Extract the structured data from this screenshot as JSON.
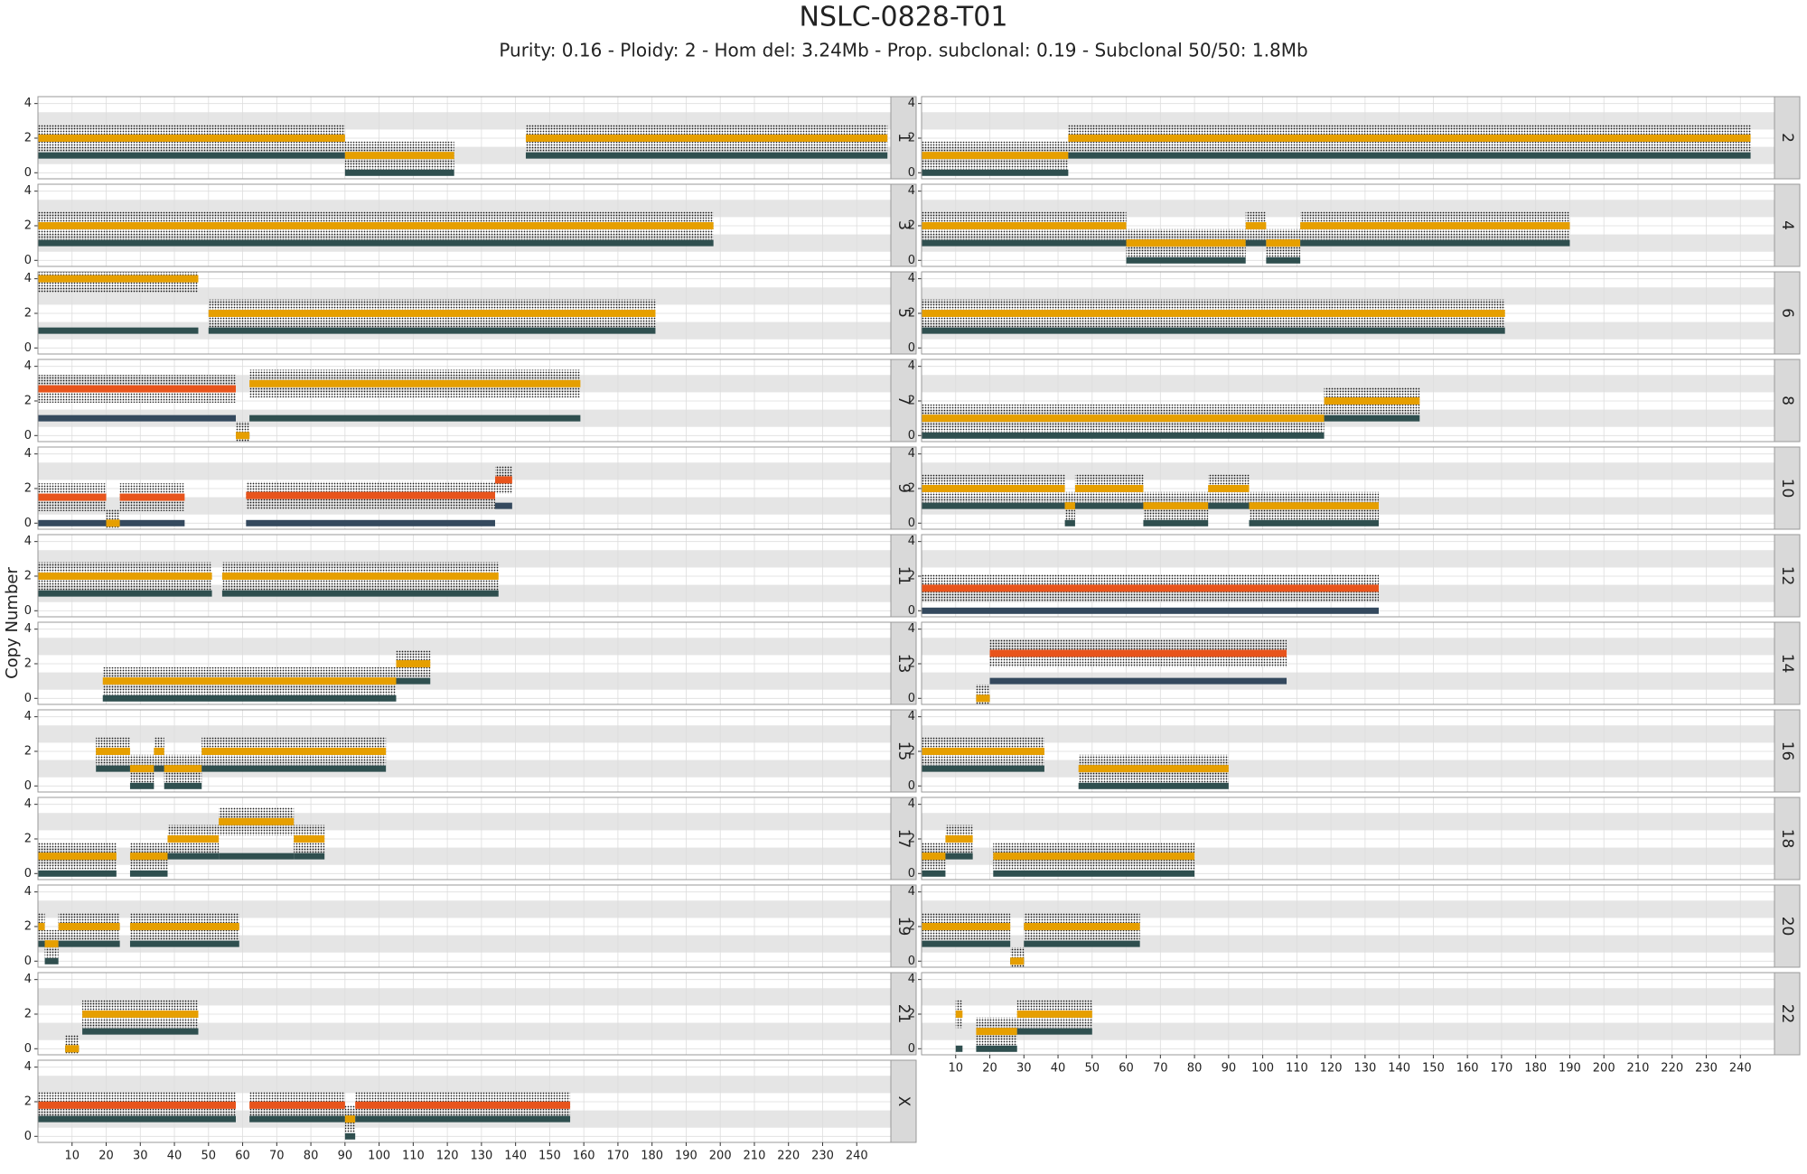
{
  "chart_data": {
    "type": "copy-number",
    "title": "NSLC-0828-T01",
    "subtitle": "Purity: 0.16 - Ploidy: 2 - Hom del: 3.24Mb - Prop. subclonal: 0.19 - Subclonal 50/50: 1.8Mb",
    "ylabel": "Copy Number",
    "xlim": [
      0,
      250
    ],
    "xticks": [
      10,
      20,
      30,
      40,
      50,
      60,
      70,
      80,
      90,
      100,
      110,
      120,
      130,
      140,
      150,
      160,
      170,
      180,
      190,
      200,
      210,
      220,
      230,
      240
    ],
    "ylim": [
      -0.35,
      4.4
    ],
    "yticks": [
      0,
      2,
      4
    ],
    "bands": [
      [
        0.5,
        1.5
      ],
      [
        2.5,
        3.5
      ]
    ],
    "panels": [
      {
        "name": "1",
        "segments": [
          {
            "start": 0,
            "end": 90,
            "total": 2,
            "minor": 1,
            "color": "#E69F00",
            "minor_color": "#2F4F4F"
          },
          {
            "start": 90,
            "end": 122,
            "total": 1,
            "minor": 0,
            "color": "#E69F00",
            "minor_color": "#2F4F4F"
          },
          {
            "start": 143,
            "end": 249,
            "total": 2,
            "minor": 1,
            "color": "#E69F00",
            "minor_color": "#2F4F4F"
          }
        ]
      },
      {
        "name": "2",
        "segments": [
          {
            "start": 0,
            "end": 43,
            "total": 1,
            "minor": 0,
            "color": "#E69F00",
            "minor_color": "#2F4F4F"
          },
          {
            "start": 43,
            "end": 243,
            "total": 2,
            "minor": 1,
            "color": "#E69F00",
            "minor_color": "#2F4F4F"
          }
        ]
      },
      {
        "name": "3",
        "segments": [
          {
            "start": 0,
            "end": 198,
            "total": 2,
            "minor": 1,
            "color": "#E69F00",
            "minor_color": "#2F4F4F"
          }
        ]
      },
      {
        "name": "4",
        "segments": [
          {
            "start": 0,
            "end": 60,
            "total": 2,
            "minor": 1,
            "color": "#E69F00",
            "minor_color": "#2F4F4F"
          },
          {
            "start": 60,
            "end": 95,
            "total": 1,
            "minor": 0,
            "color": "#E69F00",
            "minor_color": "#2F4F4F"
          },
          {
            "start": 95,
            "end": 101,
            "total": 2,
            "minor": 1,
            "color": "#E69F00",
            "minor_color": "#2F4F4F"
          },
          {
            "start": 101,
            "end": 111,
            "total": 1,
            "minor": 0,
            "color": "#E69F00",
            "minor_color": "#2F4F4F"
          },
          {
            "start": 111,
            "end": 190,
            "total": 2,
            "minor": 1,
            "color": "#E69F00",
            "minor_color": "#2F4F4F"
          }
        ]
      },
      {
        "name": "5",
        "segments": [
          {
            "start": 0,
            "end": 47,
            "total": 4,
            "minor": 1,
            "color": "#E69F00",
            "minor_color": "#2F4F4F"
          },
          {
            "start": 50,
            "end": 181,
            "total": 2,
            "minor": 1,
            "color": "#E69F00",
            "minor_color": "#2F4F4F"
          }
        ]
      },
      {
        "name": "6",
        "segments": [
          {
            "start": 0,
            "end": 171,
            "total": 2,
            "minor": 1,
            "color": "#E69F00",
            "minor_color": "#2F4F4F"
          }
        ]
      },
      {
        "name": "7",
        "segments": [
          {
            "start": 0,
            "end": 58,
            "total": 2.7,
            "minor": 1,
            "color": "#E8541C",
            "minor_color": "#34495E"
          },
          {
            "start": 58,
            "end": 62,
            "total": 0,
            "minor": 0,
            "color": "#E69F00",
            "minor_color": "#2F4F4F"
          },
          {
            "start": 62,
            "end": 159,
            "total": 3,
            "minor": 1,
            "color": "#E69F00",
            "minor_color": "#2F4F4F"
          }
        ]
      },
      {
        "name": "8",
        "segments": [
          {
            "start": 0,
            "end": 118,
            "total": 1,
            "minor": 0,
            "color": "#E69F00",
            "minor_color": "#2F4F4F"
          },
          {
            "start": 118,
            "end": 146,
            "total": 2,
            "minor": 1,
            "color": "#E69F00",
            "minor_color": "#2F4F4F"
          }
        ]
      },
      {
        "name": "9",
        "segments": [
          {
            "start": 0,
            "end": 20,
            "total": 1.5,
            "minor": 0,
            "color": "#E8541C",
            "minor_color": "#34495E"
          },
          {
            "start": 20,
            "end": 24,
            "total": 0,
            "minor": 0,
            "color": "#E69F00",
            "minor_color": "#2F4F4F"
          },
          {
            "start": 24,
            "end": 43,
            "total": 1.5,
            "minor": 0,
            "color": "#E8541C",
            "minor_color": "#34495E"
          },
          {
            "start": 61,
            "end": 134,
            "total": 1.6,
            "minor": 0,
            "color": "#E8541C",
            "minor_color": "#34495E"
          },
          {
            "start": 134,
            "end": 139,
            "total": 2.5,
            "minor": 1,
            "color": "#E8541C",
            "minor_color": "#34495E"
          }
        ]
      },
      {
        "name": "10",
        "segments": [
          {
            "start": 0,
            "end": 42,
            "total": 2,
            "minor": 1,
            "color": "#E69F00",
            "minor_color": "#2F4F4F"
          },
          {
            "start": 42,
            "end": 45,
            "total": 1,
            "minor": 0,
            "color": "#E69F00",
            "minor_color": "#2F4F4F"
          },
          {
            "start": 45,
            "end": 65,
            "total": 2,
            "minor": 1,
            "color": "#E69F00",
            "minor_color": "#2F4F4F"
          },
          {
            "start": 65,
            "end": 84,
            "total": 1,
            "minor": 0,
            "color": "#E69F00",
            "minor_color": "#2F4F4F"
          },
          {
            "start": 84,
            "end": 96,
            "total": 2,
            "minor": 1,
            "color": "#E69F00",
            "minor_color": "#2F4F4F"
          },
          {
            "start": 96,
            "end": 134,
            "total": 1,
            "minor": 0,
            "color": "#E69F00",
            "minor_color": "#2F4F4F"
          }
        ]
      },
      {
        "name": "11",
        "segments": [
          {
            "start": 0,
            "end": 51,
            "total": 2,
            "minor": 1,
            "color": "#E69F00",
            "minor_color": "#2F4F4F"
          },
          {
            "start": 54,
            "end": 135,
            "total": 2,
            "minor": 1,
            "color": "#E69F00",
            "minor_color": "#2F4F4F"
          }
        ]
      },
      {
        "name": "12",
        "segments": [
          {
            "start": 0,
            "end": 134,
            "total": 1.3,
            "minor": 0,
            "color": "#E8541C",
            "minor_color": "#34495E"
          }
        ]
      },
      {
        "name": "13",
        "segments": [
          {
            "start": 19,
            "end": 105,
            "total": 1,
            "minor": 0,
            "color": "#E69F00",
            "minor_color": "#2F4F4F"
          },
          {
            "start": 105,
            "end": 115,
            "total": 2,
            "minor": 1,
            "color": "#E69F00",
            "minor_color": "#2F4F4F"
          }
        ]
      },
      {
        "name": "14",
        "segments": [
          {
            "start": 16,
            "end": 20,
            "total": 0,
            "minor": 0,
            "color": "#E69F00",
            "minor_color": "#2F4F4F"
          },
          {
            "start": 20,
            "end": 107,
            "total": 2.6,
            "minor": 1,
            "color": "#E8541C",
            "minor_color": "#34495E"
          }
        ]
      },
      {
        "name": "15",
        "segments": [
          {
            "start": 17,
            "end": 27,
            "total": 2,
            "minor": 1,
            "color": "#E69F00",
            "minor_color": "#2F4F4F"
          },
          {
            "start": 27,
            "end": 34,
            "total": 1,
            "minor": 0,
            "color": "#E69F00",
            "minor_color": "#2F4F4F"
          },
          {
            "start": 34,
            "end": 37,
            "total": 2,
            "minor": 1,
            "color": "#E69F00",
            "minor_color": "#2F4F4F"
          },
          {
            "start": 37,
            "end": 48,
            "total": 1,
            "minor": 0,
            "color": "#E69F00",
            "minor_color": "#2F4F4F"
          },
          {
            "start": 48,
            "end": 102,
            "total": 2,
            "minor": 1,
            "color": "#E69F00",
            "minor_color": "#2F4F4F"
          }
        ]
      },
      {
        "name": "16",
        "segments": [
          {
            "start": 0,
            "end": 36,
            "total": 2,
            "minor": 1,
            "color": "#E69F00",
            "minor_color": "#2F4F4F"
          },
          {
            "start": 46,
            "end": 90,
            "total": 1,
            "minor": 0,
            "color": "#E69F00",
            "minor_color": "#2F4F4F"
          }
        ]
      },
      {
        "name": "17",
        "segments": [
          {
            "start": 0,
            "end": 23,
            "total": 1,
            "minor": 0,
            "color": "#E69F00",
            "minor_color": "#2F4F4F"
          },
          {
            "start": 27,
            "end": 38,
            "total": 1,
            "minor": 0,
            "color": "#E69F00",
            "minor_color": "#2F4F4F"
          },
          {
            "start": 38,
            "end": 53,
            "total": 2,
            "minor": 1,
            "color": "#E69F00",
            "minor_color": "#2F4F4F"
          },
          {
            "start": 53,
            "end": 75,
            "total": 3,
            "minor": 1,
            "color": "#E69F00",
            "minor_color": "#2F4F4F"
          },
          {
            "start": 75,
            "end": 84,
            "total": 2,
            "minor": 1,
            "color": "#E69F00",
            "minor_color": "#2F4F4F"
          }
        ]
      },
      {
        "name": "18",
        "segments": [
          {
            "start": 0,
            "end": 7,
            "total": 1,
            "minor": 0,
            "color": "#E69F00",
            "minor_color": "#2F4F4F"
          },
          {
            "start": 7,
            "end": 15,
            "total": 2,
            "minor": 1,
            "color": "#E69F00",
            "minor_color": "#2F4F4F"
          },
          {
            "start": 21,
            "end": 80,
            "total": 1,
            "minor": 0,
            "color": "#E69F00",
            "minor_color": "#2F4F4F"
          }
        ]
      },
      {
        "name": "19",
        "segments": [
          {
            "start": 0,
            "end": 2,
            "total": 2,
            "minor": 1,
            "color": "#E69F00",
            "minor_color": "#2F4F4F"
          },
          {
            "start": 2,
            "end": 6,
            "total": 1,
            "minor": 0,
            "color": "#E69F00",
            "minor_color": "#2F4F4F"
          },
          {
            "start": 6,
            "end": 24,
            "total": 2,
            "minor": 1,
            "color": "#E69F00",
            "minor_color": "#2F4F4F"
          },
          {
            "start": 27,
            "end": 59,
            "total": 2,
            "minor": 1,
            "color": "#E69F00",
            "minor_color": "#2F4F4F"
          }
        ]
      },
      {
        "name": "20",
        "segments": [
          {
            "start": 0,
            "end": 26,
            "total": 2,
            "minor": 1,
            "color": "#E69F00",
            "minor_color": "#2F4F4F"
          },
          {
            "start": 26,
            "end": 30,
            "total": 0,
            "minor": 0,
            "color": "#E69F00",
            "minor_color": "#2F4F4F"
          },
          {
            "start": 30,
            "end": 64,
            "total": 2,
            "minor": 1,
            "color": "#E69F00",
            "minor_color": "#2F4F4F"
          }
        ]
      },
      {
        "name": "21",
        "segments": [
          {
            "start": 8,
            "end": 12,
            "total": 0,
            "minor": 0,
            "color": "#E69F00",
            "minor_color": "#2F4F4F"
          },
          {
            "start": 13,
            "end": 47,
            "total": 2,
            "minor": 1,
            "color": "#E69F00",
            "minor_color": "#2F4F4F"
          }
        ]
      },
      {
        "name": "22",
        "segments": [
          {
            "start": 10,
            "end": 12,
            "total": 2,
            "minor": 0,
            "color": "#E69F00",
            "minor_color": "#2F4F4F"
          },
          {
            "start": 16,
            "end": 28,
            "total": 1,
            "minor": 0,
            "color": "#E69F00",
            "minor_color": "#2F4F4F"
          },
          {
            "start": 28,
            "end": 50,
            "total": 2,
            "minor": 1,
            "color": "#E69F00",
            "minor_color": "#2F4F4F"
          }
        ]
      },
      {
        "name": "X",
        "segments": [
          {
            "start": 0,
            "end": 58,
            "total": 1.8,
            "minor": 1,
            "color": "#E8541C",
            "minor_color": "#2F4F4F"
          },
          {
            "start": 62,
            "end": 90,
            "total": 1.8,
            "minor": 1,
            "color": "#E8541C",
            "minor_color": "#2F4F4F"
          },
          {
            "start": 90,
            "end": 93,
            "total": 1,
            "minor": 0,
            "color": "#E69F00",
            "minor_color": "#2F4F4F"
          },
          {
            "start": 93,
            "end": 156,
            "total": 1.8,
            "minor": 1,
            "color": "#E8541C",
            "minor_color": "#2F4F4F"
          }
        ]
      }
    ]
  }
}
